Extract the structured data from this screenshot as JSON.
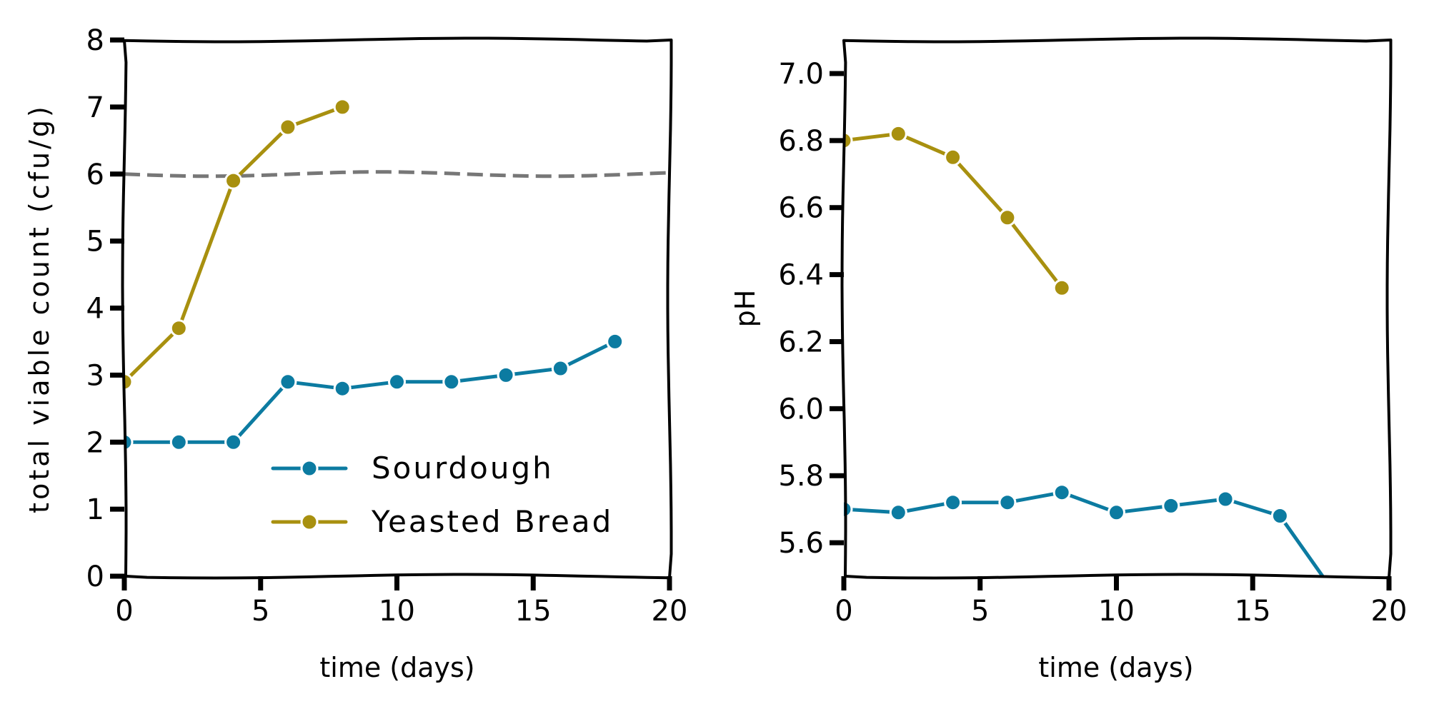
{
  "colors": {
    "sourdough": "#0c7ba1",
    "yeasted": "#a8900f",
    "threshold": "#777777",
    "frame": "#000000"
  },
  "chart_data": [
    {
      "type": "line",
      "xlabel": "time (days)",
      "ylabel": "total viable count (cfu/g)",
      "xlim": [
        0,
        20
      ],
      "ylim": [
        0,
        8
      ],
      "xticks": [
        0,
        5,
        10,
        15,
        20
      ],
      "xtick_labels": [
        "0",
        "5",
        "10",
        "15",
        "20"
      ],
      "yticks": [
        0,
        1,
        2,
        3,
        4,
        5,
        6,
        7,
        8
      ],
      "ytick_labels": [
        "0",
        "1",
        "2",
        "3",
        "4",
        "5",
        "6",
        "7",
        "8"
      ],
      "grid": false,
      "legend": "lower-right",
      "reference_line": {
        "y": 6,
        "style": "dashed",
        "color": "#777777"
      },
      "series": [
        {
          "name": "Sourdough",
          "color": "#0c7ba1",
          "x": [
            0,
            2,
            4,
            6,
            8,
            10,
            12,
            14,
            16,
            18
          ],
          "y": [
            2.0,
            2.0,
            2.0,
            2.9,
            2.8,
            2.9,
            2.9,
            3.0,
            3.1,
            3.5
          ]
        },
        {
          "name": "Yeasted Bread",
          "color": "#a8900f",
          "x": [
            0,
            2,
            4,
            6,
            8
          ],
          "y": [
            2.9,
            3.7,
            5.9,
            6.7,
            7.0
          ]
        }
      ]
    },
    {
      "type": "line",
      "xlabel": "time (days)",
      "ylabel": "pH",
      "xlim": [
        0,
        20
      ],
      "ylim": [
        5.5,
        7.1
      ],
      "xticks": [
        0,
        5,
        10,
        15,
        20
      ],
      "xtick_labels": [
        "0",
        "5",
        "10",
        "15",
        "20"
      ],
      "yticks": [
        5.6,
        5.8,
        6.0,
        6.2,
        6.4,
        6.6,
        6.8,
        7.0
      ],
      "ytick_labels": [
        "5.6",
        "5.8",
        "6.0",
        "6.2",
        "6.4",
        "6.6",
        "6.8",
        "7.0"
      ],
      "grid": false,
      "series": [
        {
          "name": "Sourdough",
          "color": "#0c7ba1",
          "x": [
            0,
            2,
            4,
            6,
            8,
            10,
            12,
            14,
            16,
            18
          ],
          "y": [
            5.7,
            5.69,
            5.72,
            5.72,
            5.75,
            5.69,
            5.71,
            5.73,
            5.68,
            5.45
          ]
        },
        {
          "name": "Yeasted Bread",
          "color": "#a8900f",
          "x": [
            0,
            2,
            4,
            6,
            8
          ],
          "y": [
            6.8,
            6.82,
            6.75,
            6.57,
            6.36
          ]
        }
      ]
    }
  ]
}
